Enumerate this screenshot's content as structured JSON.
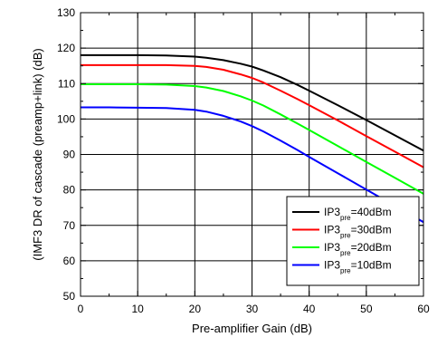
{
  "chart_data": {
    "type": "line",
    "title": "",
    "xlabel": "Pre-amplifier Gain (dB)",
    "ylabel": "(IMF3 DR of cascade (preamp+link) (dB)",
    "xlim": [
      0,
      60
    ],
    "ylim": [
      50,
      130
    ],
    "xticks": [
      0,
      10,
      20,
      30,
      40,
      50,
      60
    ],
    "yticks": [
      50,
      60,
      70,
      80,
      90,
      100,
      110,
      120,
      130
    ],
    "grid": true,
    "legend": "bottom-right",
    "x": [
      0,
      5,
      10,
      15,
      20,
      22,
      25,
      28,
      30,
      32,
      35,
      38,
      40,
      45,
      50,
      55,
      60
    ],
    "series": [
      {
        "name": "IP3pre=40dBm",
        "label_main": "IP3",
        "label_sub": "pre",
        "label_tail": "=40dBm",
        "color": "#000000",
        "values": [
          118.0,
          118.0,
          118.0,
          117.9,
          117.6,
          117.3,
          116.6,
          115.6,
          114.8,
          113.7,
          111.8,
          109.6,
          108.0,
          103.9,
          99.7,
          95.4,
          91.1
        ]
      },
      {
        "name": "IP3pre=30dBm",
        "label_main": "IP3",
        "label_sub": "pre",
        "label_tail": "=30dBm",
        "color": "#ff0000",
        "values": [
          115.2,
          115.2,
          115.2,
          115.2,
          115.0,
          114.7,
          113.9,
          112.6,
          111.6,
          110.3,
          108.0,
          105.6,
          103.9,
          99.6,
          95.2,
          90.8,
          86.4
        ]
      },
      {
        "name": "IP3pre=20dBm",
        "label_main": "IP3",
        "label_sub": "pre",
        "label_tail": "=20dBm",
        "color": "#00ff00",
        "values": [
          109.8,
          109.8,
          109.8,
          109.7,
          109.3,
          108.9,
          107.9,
          106.4,
          105.2,
          103.8,
          101.3,
          98.7,
          96.9,
          92.4,
          87.9,
          83.4,
          78.9
        ]
      },
      {
        "name": "IP3pre=10dBm",
        "label_main": "IP3",
        "label_sub": "pre",
        "label_tail": "=10dBm",
        "color": "#0000ff",
        "values": [
          103.3,
          103.3,
          103.2,
          103.1,
          102.6,
          102.1,
          100.9,
          99.3,
          98.0,
          96.5,
          93.9,
          91.2,
          89.3,
          84.7,
          80.1,
          75.5,
          70.9
        ]
      }
    ]
  }
}
